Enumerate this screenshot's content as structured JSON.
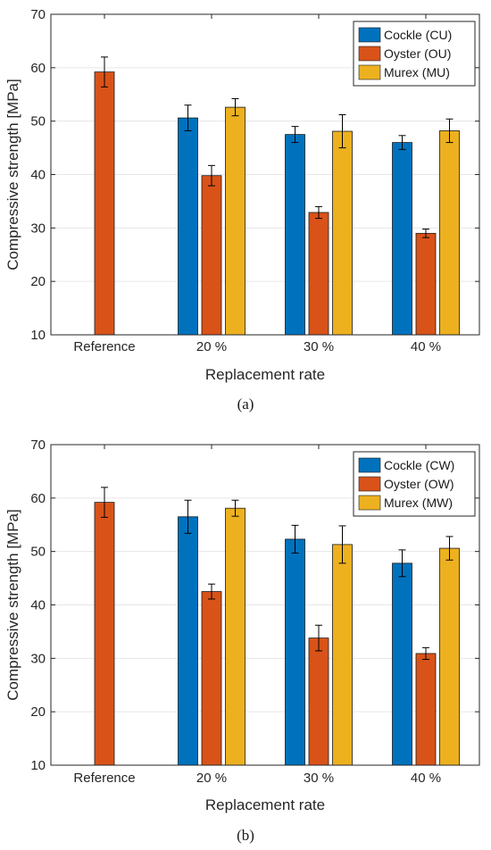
{
  "chart_data": [
    {
      "type": "bar",
      "caption": "(a)",
      "categories": [
        "Reference",
        "20 %",
        "30 %",
        "40 %"
      ],
      "xlabel": "Replacement rate",
      "ylabel": "Compressive strength [MPa]",
      "ylim": [
        10,
        70
      ],
      "yticks": [
        10,
        20,
        30,
        40,
        50,
        60,
        70
      ],
      "grid": true,
      "legend_position": "top-right",
      "series": [
        {
          "name": "Cockle (CU)",
          "color": "#0072BD",
          "values": [
            null,
            50.6,
            47.5,
            46.0
          ],
          "errors": [
            null,
            2.4,
            1.5,
            1.3
          ]
        },
        {
          "name": "Oyster (OU)",
          "color": "#D95319",
          "values": [
            59.2,
            39.8,
            32.9,
            29.0
          ],
          "errors": [
            2.8,
            1.9,
            1.1,
            0.8
          ]
        },
        {
          "name": "Murex (MU)",
          "color": "#EDB120",
          "values": [
            null,
            52.6,
            48.1,
            48.2
          ],
          "errors": [
            null,
            1.6,
            3.1,
            2.2
          ]
        }
      ]
    },
    {
      "type": "bar",
      "caption": "(b)",
      "categories": [
        "Reference",
        "20 %",
        "30 %",
        "40 %"
      ],
      "xlabel": "Replacement rate",
      "ylabel": "Compressive strength [MPa]",
      "ylim": [
        10,
        70
      ],
      "yticks": [
        10,
        20,
        30,
        40,
        50,
        60,
        70
      ],
      "grid": true,
      "legend_position": "top-right",
      "series": [
        {
          "name": "Cockle (CW)",
          "color": "#0072BD",
          "values": [
            null,
            56.5,
            52.3,
            47.8
          ],
          "errors": [
            null,
            3.1,
            2.6,
            2.5
          ]
        },
        {
          "name": "Oyster (OW)",
          "color": "#D95319",
          "values": [
            59.2,
            42.5,
            33.8,
            30.9
          ],
          "errors": [
            2.8,
            1.4,
            2.4,
            1.1
          ]
        },
        {
          "name": "Murex (MW)",
          "color": "#EDB120",
          "values": [
            null,
            58.1,
            51.3,
            50.6
          ],
          "errors": [
            null,
            1.5,
            3.5,
            2.2
          ]
        }
      ]
    }
  ]
}
